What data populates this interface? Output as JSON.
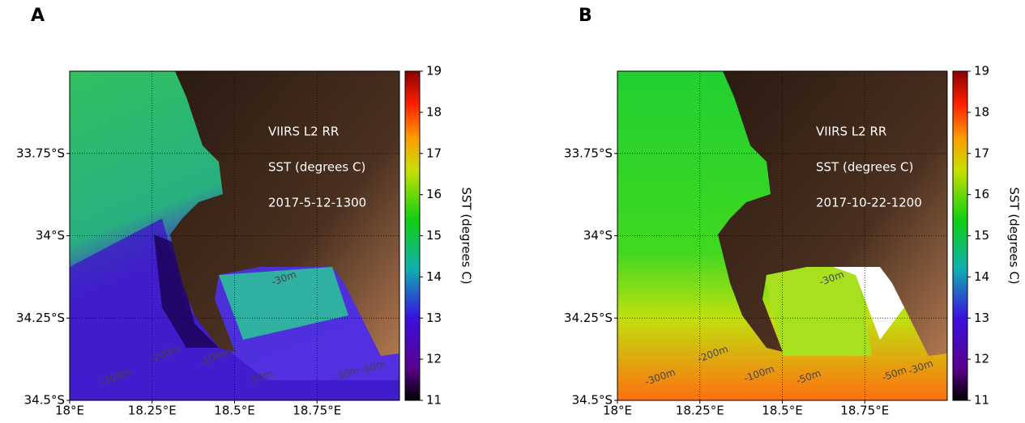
{
  "chart_data": [
    {
      "type": "map",
      "panel_label": "A",
      "xlim": [
        18,
        19
      ],
      "ylim": [
        -34.5,
        -33.5
      ],
      "xticks": [
        {
          "value": 18,
          "label": "18°E"
        },
        {
          "value": 18.25,
          "label": "18.25°E"
        },
        {
          "value": 18.5,
          "label": "18.5°E"
        },
        {
          "value": 18.75,
          "label": "18.75°E"
        }
      ],
      "yticks": [
        {
          "value": -33.75,
          "label": "33.75°S"
        },
        {
          "value": -34,
          "label": "34°S"
        },
        {
          "value": -34.25,
          "label": "34.25°S"
        },
        {
          "value": -34.5,
          "label": "34.5°S"
        }
      ],
      "grid": true,
      "annotations": [
        "VIIRS L2 RR",
        "SST (degrees C)",
        "2017-5-12-1300"
      ],
      "contour_labels": [
        {
          "label": "-30m",
          "x": 18.65,
          "y": -34.13
        },
        {
          "label": "-50m",
          "x": 18.58,
          "y": -34.43
        },
        {
          "label": "-100m",
          "x": 18.44,
          "y": -34.37
        },
        {
          "label": "-200m",
          "x": 18.29,
          "y": -34.36
        },
        {
          "label": "-300m",
          "x": 18.14,
          "y": -34.43
        },
        {
          "label": "-30m",
          "x": 18.84,
          "y": -34.42
        },
        {
          "label": "-30m",
          "x": 18.92,
          "y": -34.4
        }
      ],
      "colorbar": {
        "label": "SST (degrees C)",
        "lim": [
          11,
          19
        ],
        "ticks": [
          11,
          12,
          13,
          14,
          15,
          16,
          17,
          18,
          19
        ]
      }
    },
    {
      "type": "map",
      "panel_label": "B",
      "xlim": [
        18,
        19
      ],
      "ylim": [
        -34.5,
        -33.5
      ],
      "xticks": [
        {
          "value": 18,
          "label": "18°E"
        },
        {
          "value": 18.25,
          "label": "18.25°E"
        },
        {
          "value": 18.5,
          "label": "18.5°E"
        },
        {
          "value": 18.75,
          "label": "18.75°E"
        }
      ],
      "yticks": [
        {
          "value": -33.75,
          "label": "33.75°S"
        },
        {
          "value": -34,
          "label": "34°S"
        },
        {
          "value": -34.25,
          "label": "34.25°S"
        },
        {
          "value": -34.5,
          "label": "34.5°S"
        }
      ],
      "grid": true,
      "annotations": [
        "VIIRS L2 RR",
        "SST (degrees C)",
        "2017-10-22-1200"
      ],
      "contour_labels": [
        {
          "label": "-30m",
          "x": 18.65,
          "y": -34.13
        },
        {
          "label": "-50m",
          "x": 18.58,
          "y": -34.43
        },
        {
          "label": "-100m",
          "x": 18.43,
          "y": -34.42
        },
        {
          "label": "-200m",
          "x": 18.29,
          "y": -34.36
        },
        {
          "label": "-300m",
          "x": 18.13,
          "y": -34.43
        },
        {
          "label": "-50m",
          "x": 18.84,
          "y": -34.42
        },
        {
          "label": "-30m",
          "x": 18.92,
          "y": -34.4
        }
      ],
      "colorbar": {
        "label": "SST (degrees C)",
        "lim": [
          11,
          19
        ],
        "ticks": [
          11,
          12,
          13,
          14,
          15,
          16,
          17,
          18,
          19
        ]
      }
    }
  ]
}
